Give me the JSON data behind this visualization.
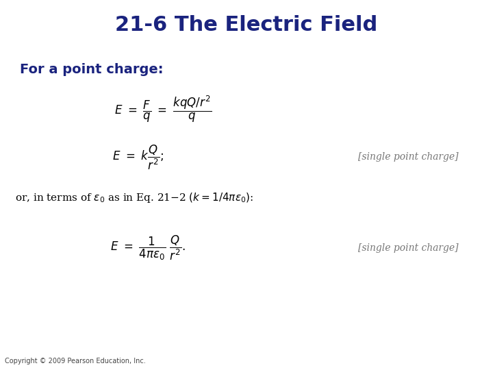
{
  "title": "21-6 The Electric Field",
  "title_color": "#1a237e",
  "title_fontsize": 22,
  "subtitle": "For a point charge:",
  "subtitle_color": "#1a237e",
  "subtitle_fontsize": 14,
  "bg_color": "#ffffff",
  "formula_color": "#000000",
  "label_color": "#777777",
  "copyright": "Copyright © 2009 Pearson Education, Inc.",
  "copyright_fontsize": 7,
  "eq1_fontsize": 12,
  "eq2_fontsize": 12,
  "eq3_fontsize": 11,
  "eq4_fontsize": 12,
  "label_fontsize": 10
}
